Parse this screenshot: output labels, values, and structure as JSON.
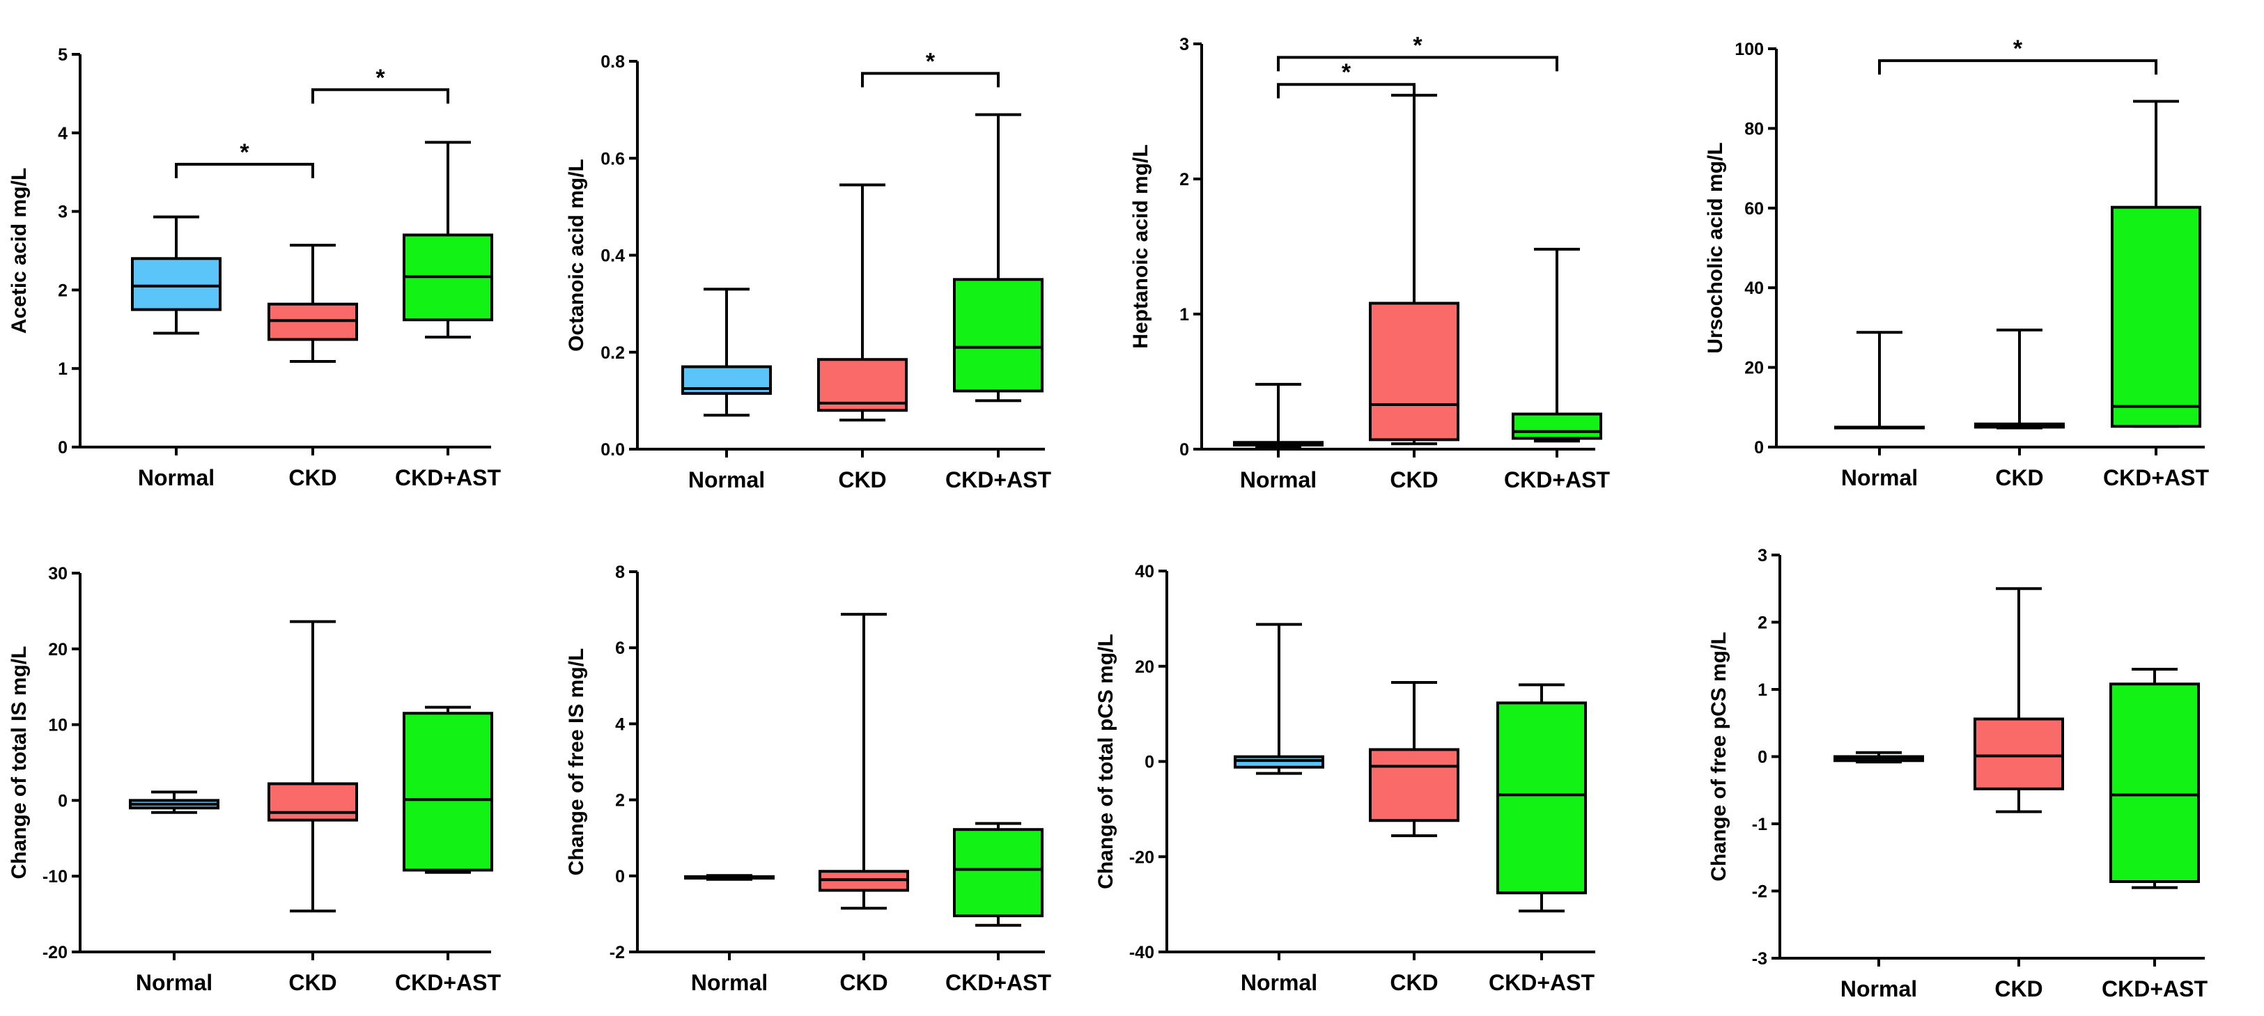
{
  "colors": {
    "Normal": "#5bc5f9",
    "CKD": "#f96a68",
    "CKD+AST": "#12f215"
  },
  "chart_data": [
    {
      "type": "box",
      "ylabel": "Acetic acid mg/L",
      "ylim": [
        0,
        5
      ],
      "yticks": [
        0,
        1,
        2,
        3,
        4,
        5
      ],
      "categories": [
        "Normal",
        "CKD",
        "CKD+AST"
      ],
      "boxes": [
        {
          "group": "Normal",
          "min": 1.45,
          "q1": 1.75,
          "median": 2.05,
          "q3": 2.4,
          "max": 2.93
        },
        {
          "group": "CKD",
          "min": 1.09,
          "q1": 1.37,
          "median": 1.61,
          "q3": 1.82,
          "max": 2.57
        },
        {
          "group": "CKD+AST",
          "min": 1.4,
          "q1": 1.62,
          "median": 2.17,
          "q3": 2.7,
          "max": 3.88
        }
      ],
      "significance": [
        {
          "from": "Normal",
          "to": "CKD",
          "y": 3.6,
          "label": "*"
        },
        {
          "from": "CKD",
          "to": "CKD+AST",
          "y": 4.55,
          "label": "*"
        }
      ]
    },
    {
      "type": "box",
      "ylabel": "Octanoic acid mg/L",
      "ylim": [
        0,
        0.8
      ],
      "yticks": [
        "0.0",
        "0.2",
        "0.4",
        "0.6",
        "0.8"
      ],
      "categories": [
        "Normal",
        "CKD",
        "CKD+AST"
      ],
      "boxes": [
        {
          "group": "Normal",
          "min": 0.07,
          "q1": 0.115,
          "median": 0.125,
          "q3": 0.17,
          "max": 0.33
        },
        {
          "group": "CKD",
          "min": 0.06,
          "q1": 0.08,
          "median": 0.095,
          "q3": 0.185,
          "max": 0.545
        },
        {
          "group": "CKD+AST",
          "min": 0.1,
          "q1": 0.12,
          "median": 0.21,
          "q3": 0.35,
          "max": 0.69
        }
      ],
      "significance": [
        {
          "from": "CKD",
          "to": "CKD+AST",
          "y": 0.775,
          "label": "*"
        }
      ]
    },
    {
      "type": "box",
      "ylabel": "Heptanoic acid mg/L",
      "ylim": [
        0,
        3
      ],
      "yticks": [
        0,
        1,
        2,
        3
      ],
      "categories": [
        "Normal",
        "CKD",
        "CKD+AST"
      ],
      "boxes": [
        {
          "group": "Normal",
          "min": 0.02,
          "q1": 0.03,
          "median": 0.04,
          "q3": 0.05,
          "max": 0.48
        },
        {
          "group": "CKD",
          "min": 0.04,
          "q1": 0.07,
          "median": 0.33,
          "q3": 1.08,
          "max": 2.62
        },
        {
          "group": "CKD+AST",
          "min": 0.06,
          "q1": 0.08,
          "median": 0.13,
          "q3": 0.26,
          "max": 1.48
        }
      ],
      "significance": [
        {
          "from": "Normal",
          "to": "CKD",
          "y": 2.7,
          "label": "*"
        },
        {
          "from": "Normal",
          "to": "CKD+AST",
          "y": 2.9,
          "label": "*"
        }
      ]
    },
    {
      "type": "box",
      "ylabel": "Ursocholic acid mg/L",
      "ylim": [
        0,
        100
      ],
      "yticks": [
        0,
        20,
        40,
        60,
        80,
        100
      ],
      "categories": [
        "Normal",
        "CKD",
        "CKD+AST"
      ],
      "boxes": [
        {
          "group": "Normal",
          "min": 4.8,
          "q1": 4.8,
          "median": 4.9,
          "q3": 5.0,
          "max": 28.8
        },
        {
          "group": "CKD",
          "min": 4.8,
          "q1": 5.0,
          "median": 5.3,
          "q3": 5.8,
          "max": 29.4
        },
        {
          "group": "CKD+AST",
          "min": 5.2,
          "q1": 5.2,
          "median": 10.2,
          "q3": 60.2,
          "max": 86.8
        }
      ],
      "significance": [
        {
          "from": "Normal",
          "to": "CKD+AST",
          "y": 97,
          "label": "*"
        }
      ]
    },
    {
      "type": "box",
      "ylabel": "Change of total IS mg/L",
      "ylim": [
        -20,
        30
      ],
      "yticks": [
        -20,
        -10,
        0,
        10,
        20,
        30
      ],
      "categories": [
        "Normal",
        "CKD",
        "CKD+AST"
      ],
      "boxes": [
        {
          "group": "Normal",
          "min": -1.6,
          "q1": -1.0,
          "median": -0.5,
          "q3": 0.0,
          "max": 1.1
        },
        {
          "group": "CKD",
          "min": -14.6,
          "q1": -2.6,
          "median": -1.6,
          "q3": 2.2,
          "max": 23.6
        },
        {
          "group": "CKD+AST",
          "min": -9.5,
          "q1": -9.2,
          "median": 0.1,
          "q3": 11.5,
          "max": 12.3
        }
      ],
      "significance": []
    },
    {
      "type": "box",
      "ylabel": "Change of free IS mg/L",
      "ylim": [
        -2,
        8
      ],
      "yticks": [
        -2,
        0,
        2,
        4,
        6,
        8
      ],
      "categories": [
        "Normal",
        "CKD",
        "CKD+AST"
      ],
      "boxes": [
        {
          "group": "Normal",
          "min": -0.09,
          "q1": -0.06,
          "median": -0.04,
          "q3": -0.02,
          "max": 0.01
        },
        {
          "group": "CKD",
          "min": -0.85,
          "q1": -0.38,
          "median": -0.1,
          "q3": 0.12,
          "max": 6.88
        },
        {
          "group": "CKD+AST",
          "min": -1.3,
          "q1": -1.05,
          "median": 0.17,
          "q3": 1.22,
          "max": 1.38
        }
      ],
      "significance": []
    },
    {
      "type": "box",
      "ylabel": "Change of total pCS mg/L",
      "ylim": [
        -40,
        40
      ],
      "yticks": [
        -40,
        -20,
        0,
        20,
        40
      ],
      "categories": [
        "Normal",
        "CKD",
        "CKD+AST"
      ],
      "boxes": [
        {
          "group": "Normal",
          "min": -2.5,
          "q1": -1.2,
          "median": 0.2,
          "q3": 1.0,
          "max": 28.8
        },
        {
          "group": "CKD",
          "min": -15.6,
          "q1": -12.4,
          "median": -1.0,
          "q3": 2.5,
          "max": 16.6
        },
        {
          "group": "CKD+AST",
          "min": -31.4,
          "q1": -27.6,
          "median": -7.0,
          "q3": 12.3,
          "max": 16.1
        }
      ],
      "significance": []
    },
    {
      "type": "box",
      "ylabel": "Change of free pCS mg/L",
      "ylim": [
        -3,
        3
      ],
      "yticks": [
        -3,
        -2,
        -1,
        0,
        1,
        2,
        3
      ],
      "categories": [
        "Normal",
        "CKD",
        "CKD+AST"
      ],
      "boxes": [
        {
          "group": "Normal",
          "min": -0.08,
          "q1": -0.06,
          "median": -0.02,
          "q3": 0.0,
          "max": 0.06
        },
        {
          "group": "CKD",
          "min": -0.82,
          "q1": -0.48,
          "median": 0.01,
          "q3": 0.56,
          "max": 2.5
        },
        {
          "group": "CKD+AST",
          "min": -1.95,
          "q1": -1.86,
          "median": -0.57,
          "q3": 1.08,
          "max": 1.3
        }
      ],
      "significance": []
    }
  ]
}
